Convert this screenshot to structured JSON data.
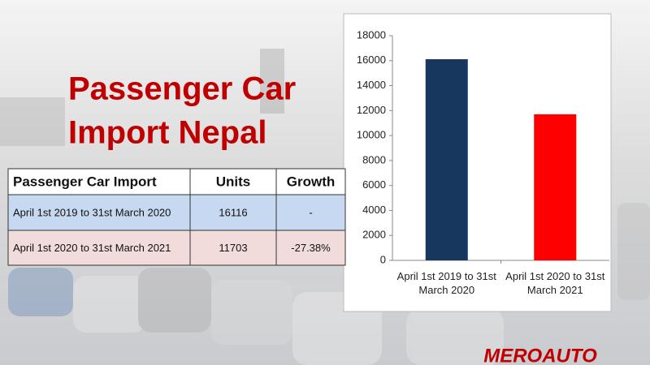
{
  "title": {
    "line1": "Passenger Car",
    "line2": "Import Nepal"
  },
  "table": {
    "header": [
      "Passenger Car Import",
      "Units",
      "Growth"
    ],
    "rows": [
      [
        "April 1st 2019 to 31st March 2020",
        "16116",
        "-"
      ],
      [
        "April 1st 2020 to 31st March 2021",
        "11703",
        "-27.38%"
      ]
    ]
  },
  "logo": "MEROAUTO",
  "chart_data": {
    "type": "bar",
    "categories": [
      "April 1st 2019 to 31st March 2020",
      "April 1st 2020 to 31st March 2021"
    ],
    "values": [
      16116,
      11703
    ],
    "colors": [
      "#17375e",
      "#ff0000"
    ],
    "ylim": [
      0,
      18000
    ],
    "yticks": [
      0,
      2000,
      4000,
      6000,
      8000,
      10000,
      12000,
      14000,
      16000,
      18000
    ],
    "grid": false
  }
}
